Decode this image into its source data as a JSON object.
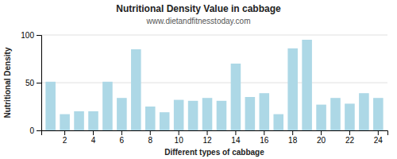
{
  "chart_data": {
    "type": "bar",
    "title": "Nutritional Density Value in cabbage",
    "subtitle": "www.dietandfitnesstoday.com",
    "xlabel": "Different types of cabbage",
    "ylabel": "Nutritional Density",
    "categories": [
      null,
      "2",
      null,
      "4",
      null,
      "6",
      null,
      "8",
      null,
      "10",
      null,
      "12",
      null,
      "14",
      null,
      "16",
      null,
      "18",
      null,
      "20",
      null,
      "22",
      null,
      "24"
    ],
    "values": [
      51,
      17,
      20,
      20,
      51,
      34,
      85,
      25,
      19,
      32,
      31,
      34,
      31,
      70,
      35,
      39,
      17,
      86,
      95,
      27,
      34,
      28,
      39,
      34
    ],
    "color": "#add8e6",
    "ylim": [
      0,
      100
    ],
    "yticks": [
      0,
      50,
      100
    ],
    "grid": true
  }
}
